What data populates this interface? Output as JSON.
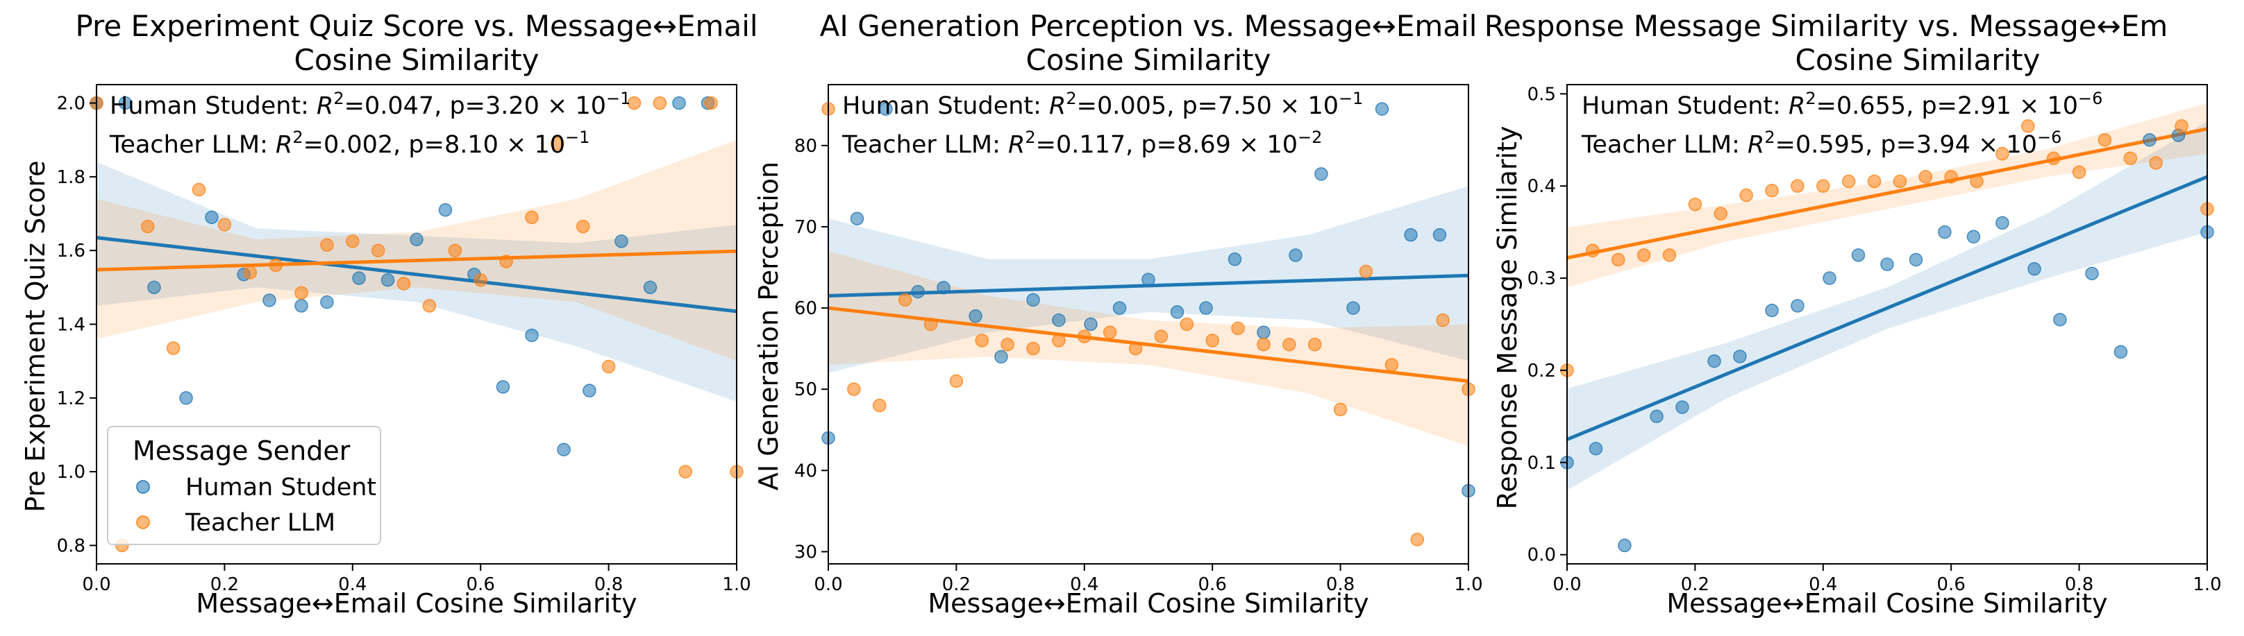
{
  "figure": {
    "colors": {
      "human": "#1f77b4",
      "teacher": "#ff7f0e"
    }
  },
  "chart_data": [
    {
      "type": "scatter",
      "title_lines": [
        "Pre Experiment Quiz Score vs. Message↔Email",
        "Cosine Similarity"
      ],
      "xlabel": "Message↔Email Cosine Similarity",
      "ylabel": "Pre Experiment Quiz Score",
      "xlim": [
        0.0,
        1.0
      ],
      "ylim": [
        0.75,
        2.05
      ],
      "xticks": [
        0.0,
        0.2,
        0.4,
        0.6,
        0.8,
        1.0
      ],
      "xtick_labels": [
        "0.0",
        "0.2",
        "0.4",
        "0.6",
        "0.8",
        "1.0"
      ],
      "yticks": [
        0.8,
        1.0,
        1.2,
        1.4,
        1.6,
        1.8,
        2.0
      ],
      "ytick_labels": [
        "0.8",
        "1.0",
        "1.2",
        "1.4",
        "1.6",
        "1.8",
        "2.0"
      ],
      "legend": {
        "title": "Message Sender",
        "location": "lower-left",
        "entries": [
          "Human Student",
          "Teacher LLM"
        ]
      },
      "series": [
        {
          "name": "Human Student",
          "stat_label": "Human Student: R²=0.047, p=3.20×10⁻¹",
          "stat_prefix": "Human Student: ",
          "r2": "0.047",
          "p_mantissa": "3.20",
          "p_exp": "−1",
          "points": [
            [
              0.0,
              2.0
            ],
            [
              0.045,
              2.0
            ],
            [
              0.09,
              1.5
            ],
            [
              0.14,
              1.2
            ],
            [
              0.18,
              1.69
            ],
            [
              0.23,
              1.535
            ],
            [
              0.27,
              1.465
            ],
            [
              0.32,
              1.45
            ],
            [
              0.36,
              1.46
            ],
            [
              0.41,
              1.525
            ],
            [
              0.455,
              1.52
            ],
            [
              0.5,
              1.63
            ],
            [
              0.545,
              1.71
            ],
            [
              0.59,
              1.535
            ],
            [
              0.635,
              1.23
            ],
            [
              0.68,
              1.37
            ],
            [
              0.73,
              1.06
            ],
            [
              0.77,
              1.22
            ],
            [
              0.82,
              1.625
            ],
            [
              0.865,
              1.5
            ],
            [
              0.91,
              2.0
            ],
            [
              0.955,
              2.0
            ]
          ],
          "fit": {
            "y0": 1.635,
            "y1": 1.435
          },
          "band": [
            [
              0.0,
              1.45,
              1.84
            ],
            [
              0.25,
              1.5,
              1.66
            ],
            [
              0.5,
              1.46,
              1.64
            ],
            [
              0.75,
              1.34,
              1.62
            ],
            [
              1.0,
              1.19,
              1.67
            ]
          ]
        },
        {
          "name": "Teacher LLM",
          "stat_label": "Teacher LLM: R²=0.002, p=8.10×10⁻¹",
          "stat_prefix": "Teacher LLM: ",
          "r2": "0.002",
          "p_mantissa": "8.10",
          "p_exp": "−1",
          "points": [
            [
              0.0,
              2.0
            ],
            [
              0.04,
              0.8
            ],
            [
              0.08,
              1.665
            ],
            [
              0.12,
              1.335
            ],
            [
              0.16,
              1.765
            ],
            [
              0.2,
              1.67
            ],
            [
              0.24,
              1.54
            ],
            [
              0.28,
              1.56
            ],
            [
              0.32,
              1.485
            ],
            [
              0.36,
              1.615
            ],
            [
              0.4,
              1.625
            ],
            [
              0.44,
              1.6
            ],
            [
              0.48,
              1.51
            ],
            [
              0.52,
              1.45
            ],
            [
              0.56,
              1.6
            ],
            [
              0.6,
              1.52
            ],
            [
              0.64,
              1.57
            ],
            [
              0.68,
              1.69
            ],
            [
              0.72,
              1.89
            ],
            [
              0.76,
              1.665
            ],
            [
              0.8,
              1.285
            ],
            [
              0.84,
              2.0
            ],
            [
              0.88,
              2.0
            ],
            [
              0.92,
              1.0
            ],
            [
              0.96,
              2.0
            ],
            [
              1.0,
              1.0
            ]
          ],
          "fit": {
            "y0": 1.548,
            "y1": 1.598
          },
          "band": [
            [
              0.0,
              1.36,
              1.74
            ],
            [
              0.25,
              1.46,
              1.63
            ],
            [
              0.5,
              1.5,
              1.65
            ],
            [
              0.75,
              1.46,
              1.74
            ],
            [
              1.0,
              1.3,
              1.9
            ]
          ]
        }
      ]
    },
    {
      "type": "scatter",
      "title_lines": [
        "AI Generation Perception vs. Message↔Email",
        "Cosine Similarity"
      ],
      "xlabel": "Message↔Email Cosine Similarity",
      "ylabel": "AI Generation Perception",
      "xlim": [
        0.0,
        1.0
      ],
      "ylim": [
        28.5,
        87.5
      ],
      "xticks": [
        0.0,
        0.2,
        0.4,
        0.6,
        0.8,
        1.0
      ],
      "xtick_labels": [
        "0.0",
        "0.2",
        "0.4",
        "0.6",
        "0.8",
        "1.0"
      ],
      "yticks": [
        30,
        40,
        50,
        60,
        70,
        80
      ],
      "ytick_labels": [
        "30",
        "40",
        "50",
        "60",
        "70",
        "80"
      ],
      "series": [
        {
          "name": "Human Student",
          "stat_label": "Human Student: R²=0.005, p=7.50×10⁻¹",
          "stat_prefix": "Human Student: ",
          "r2": "0.005",
          "p_mantissa": "7.50",
          "p_exp": "−1",
          "points": [
            [
              0.0,
              44.0
            ],
            [
              0.045,
              71.0
            ],
            [
              0.09,
              84.5
            ],
            [
              0.14,
              62.0
            ],
            [
              0.18,
              62.5
            ],
            [
              0.23,
              59.0
            ],
            [
              0.27,
              54.0
            ],
            [
              0.32,
              61.0
            ],
            [
              0.36,
              58.5
            ],
            [
              0.41,
              58.0
            ],
            [
              0.455,
              60.0
            ],
            [
              0.5,
              63.5
            ],
            [
              0.545,
              59.5
            ],
            [
              0.59,
              60.0
            ],
            [
              0.635,
              66.0
            ],
            [
              0.68,
              57.0
            ],
            [
              0.73,
              66.5
            ],
            [
              0.77,
              76.5
            ],
            [
              0.82,
              60.0
            ],
            [
              0.865,
              84.5
            ],
            [
              0.91,
              69.0
            ],
            [
              0.955,
              69.0
            ],
            [
              1.0,
              37.5
            ]
          ],
          "fit": {
            "y0": 61.5,
            "y1": 64.0
          },
          "band": [
            [
              0.0,
              52.0,
              71.0
            ],
            [
              0.25,
              57.0,
              66.0
            ],
            [
              0.5,
              59.5,
              66.0
            ],
            [
              0.75,
              58.5,
              69.0
            ],
            [
              1.0,
              53.5,
              75.0
            ]
          ]
        },
        {
          "name": "Teacher LLM",
          "stat_label": "Teacher LLM: R²=0.117, p=8.69×10⁻²",
          "stat_prefix": "Teacher LLM: ",
          "r2": "0.117",
          "p_mantissa": "8.69",
          "p_exp": "−2",
          "points": [
            [
              0.0,
              84.5
            ],
            [
              0.04,
              50.0
            ],
            [
              0.08,
              48.0
            ],
            [
              0.12,
              61.0
            ],
            [
              0.16,
              58.0
            ],
            [
              0.2,
              51.0
            ],
            [
              0.24,
              56.0
            ],
            [
              0.28,
              55.5
            ],
            [
              0.32,
              55.0
            ],
            [
              0.36,
              56.0
            ],
            [
              0.4,
              56.5
            ],
            [
              0.44,
              57.0
            ],
            [
              0.48,
              55.0
            ],
            [
              0.52,
              56.5
            ],
            [
              0.56,
              58.0
            ],
            [
              0.6,
              56.0
            ],
            [
              0.64,
              57.5
            ],
            [
              0.68,
              55.5
            ],
            [
              0.72,
              55.5
            ],
            [
              0.76,
              55.5
            ],
            [
              0.8,
              47.5
            ],
            [
              0.84,
              64.5
            ],
            [
              0.88,
              53.0
            ],
            [
              0.92,
              31.5
            ],
            [
              0.96,
              58.5
            ],
            [
              1.0,
              50.0
            ]
          ],
          "fit": {
            "y0": 60.0,
            "y1": 51.0
          },
          "band": [
            [
              0.0,
              53.0,
              67.0
            ],
            [
              0.25,
              54.0,
              61.5
            ],
            [
              0.5,
              53.0,
              58.5
            ],
            [
              0.75,
              49.5,
              57.5
            ],
            [
              1.0,
              43.0,
              58.0
            ]
          ]
        }
      ]
    },
    {
      "type": "scatter",
      "title_lines": [
        "Response Message Similarity vs. Message↔Em",
        "Cosine Similarity"
      ],
      "xlabel": "Message↔Email Cosine Similarity",
      "ylabel": "Response Message Similarity",
      "xlim": [
        0.0,
        1.0
      ],
      "ylim": [
        -0.01,
        0.51
      ],
      "xticks": [
        0.0,
        0.2,
        0.4,
        0.6,
        0.8,
        1.0
      ],
      "xtick_labels": [
        "0.0",
        "0.2",
        "0.4",
        "0.6",
        "0.8",
        "1.0"
      ],
      "yticks": [
        0.0,
        0.1,
        0.2,
        0.3,
        0.4,
        0.5
      ],
      "ytick_labels": [
        "0.0",
        "0.1",
        "0.2",
        "0.3",
        "0.4",
        "0.5"
      ],
      "series": [
        {
          "name": "Human Student",
          "stat_label": "Human Student: R²=0.655, p=2.91×10⁻⁶",
          "stat_prefix": "Human Student: ",
          "r2": "0.655",
          "p_mantissa": "2.91",
          "p_exp": "−6",
          "points": [
            [
              0.0,
              0.1
            ],
            [
              0.045,
              0.115
            ],
            [
              0.09,
              0.01
            ],
            [
              0.14,
              0.15
            ],
            [
              0.18,
              0.16
            ],
            [
              0.23,
              0.21
            ],
            [
              0.27,
              0.215
            ],
            [
              0.32,
              0.265
            ],
            [
              0.36,
              0.27
            ],
            [
              0.41,
              0.3
            ],
            [
              0.455,
              0.325
            ],
            [
              0.5,
              0.315
            ],
            [
              0.545,
              0.32
            ],
            [
              0.59,
              0.35
            ],
            [
              0.635,
              0.345
            ],
            [
              0.68,
              0.36
            ],
            [
              0.73,
              0.31
            ],
            [
              0.77,
              0.255
            ],
            [
              0.82,
              0.305
            ],
            [
              0.865,
              0.22
            ],
            [
              0.91,
              0.45
            ],
            [
              0.955,
              0.455
            ],
            [
              1.0,
              0.35
            ]
          ],
          "fit": {
            "y0": 0.125,
            "y1": 0.41
          },
          "band": [
            [
              0.0,
              0.07,
              0.18
            ],
            [
              0.25,
              0.17,
              0.23
            ],
            [
              0.5,
              0.245,
              0.29
            ],
            [
              0.75,
              0.3,
              0.37
            ],
            [
              1.0,
              0.35,
              0.47
            ]
          ]
        },
        {
          "name": "Teacher LLM",
          "stat_label": "Teacher LLM: R²=0.595, p=3.94×10⁻⁶",
          "stat_prefix": "Teacher LLM: ",
          "r2": "0.595",
          "p_mantissa": "3.94",
          "p_exp": "−6",
          "points": [
            [
              0.0,
              0.2
            ],
            [
              0.04,
              0.33
            ],
            [
              0.08,
              0.32
            ],
            [
              0.12,
              0.325
            ],
            [
              0.16,
              0.325
            ],
            [
              0.2,
              0.38
            ],
            [
              0.24,
              0.37
            ],
            [
              0.28,
              0.39
            ],
            [
              0.32,
              0.395
            ],
            [
              0.36,
              0.4
            ],
            [
              0.4,
              0.4
            ],
            [
              0.44,
              0.405
            ],
            [
              0.48,
              0.405
            ],
            [
              0.52,
              0.405
            ],
            [
              0.56,
              0.41
            ],
            [
              0.6,
              0.41
            ],
            [
              0.64,
              0.405
            ],
            [
              0.68,
              0.435
            ],
            [
              0.72,
              0.465
            ],
            [
              0.76,
              0.43
            ],
            [
              0.8,
              0.415
            ],
            [
              0.84,
              0.45
            ],
            [
              0.88,
              0.43
            ],
            [
              0.92,
              0.425
            ],
            [
              0.96,
              0.465
            ],
            [
              1.0,
              0.375
            ]
          ],
          "fit": {
            "y0": 0.322,
            "y1": 0.462
          },
          "band": [
            [
              0.0,
              0.29,
              0.355
            ],
            [
              0.25,
              0.34,
              0.38
            ],
            [
              0.5,
              0.375,
              0.405
            ],
            [
              0.75,
              0.41,
              0.44
            ],
            [
              1.0,
              0.435,
              0.49
            ]
          ]
        }
      ]
    }
  ]
}
